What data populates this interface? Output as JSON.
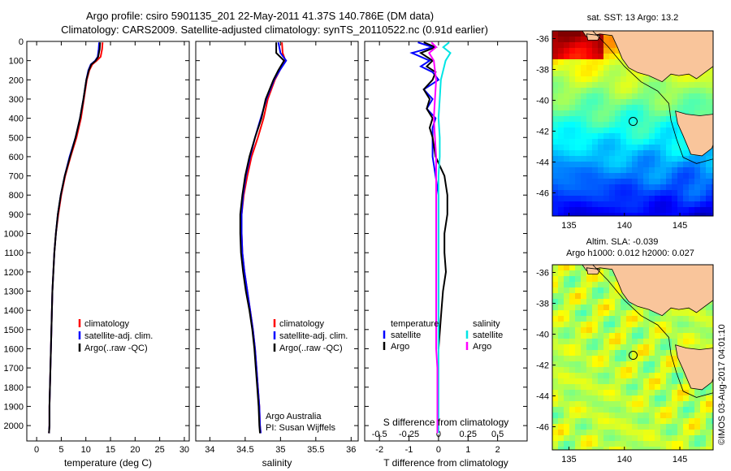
{
  "header": {
    "line1": "Argo profile: csiro 5901135_201 22-May-2011 41.37S 140.786E (DM data)",
    "line2": "Climatology: CARS2009. Satellite-adjusted climatology: synTS_20110522.nc (0.91d earlier)"
  },
  "colors": {
    "climatology": "#ff0000",
    "satellite": "#0000ff",
    "argo": "#000000",
    "argo_salinity": "#ff00ff",
    "satellite_salinity": "#00e5e5",
    "land": "#f9c59b"
  },
  "credit": "©IMOS 03-Aug-2017 04:01:10",
  "chart_data": [
    {
      "type": "line",
      "id": "temperature",
      "xlabel": "temperature (deg C)",
      "ylabel": "",
      "xlim": [
        -2,
        31
      ],
      "ylim": [
        2080,
        0
      ],
      "xticks": [
        0,
        5,
        10,
        15,
        20,
        25,
        30
      ],
      "yticks": [
        0,
        100,
        200,
        300,
        400,
        500,
        600,
        700,
        800,
        900,
        1000,
        1100,
        1200,
        1300,
        1400,
        1500,
        1600,
        1700,
        1800,
        1900,
        2000
      ],
      "legend": {
        "placement": "lower-middle",
        "entries": [
          "climatology",
          "satellite-adj. clim.",
          "Argo(..raw -QC)"
        ]
      },
      "series": [
        {
          "name": "climatology",
          "color_key": "climatology",
          "depth": [
            5,
            40,
            80,
            100,
            120,
            150,
            200,
            300,
            400,
            500,
            600,
            700,
            800,
            900,
            1000,
            1100,
            1200,
            1300,
            1400,
            1500,
            1600,
            1700,
            1800,
            1900,
            2000,
            2040
          ],
          "values": [
            13.4,
            13.3,
            13.0,
            12.2,
            11.3,
            10.7,
            10.2,
            9.6,
            9.0,
            8.1,
            6.9,
            5.8,
            5.0,
            4.4,
            3.9,
            3.6,
            3.4,
            3.2,
            3.1,
            3.0,
            2.9,
            2.8,
            2.7,
            2.6,
            2.6,
            2.5
          ]
        },
        {
          "name": "satellite-adj. clim.",
          "color_key": "satellite",
          "depth": [
            5,
            40,
            80,
            100,
            120,
            150,
            200,
            300,
            400,
            500,
            600,
            700,
            800,
            900,
            1000,
            1100,
            1200,
            1300,
            1400,
            1500,
            1600,
            1700,
            1800,
            1900,
            2000,
            2040
          ],
          "values": [
            12.7,
            12.6,
            12.4,
            11.9,
            11.0,
            10.5,
            10.1,
            9.5,
            8.8,
            7.9,
            6.7,
            5.7,
            4.9,
            4.3,
            3.9,
            3.6,
            3.4,
            3.2,
            3.1,
            3.0,
            2.9,
            2.8,
            2.7,
            2.6,
            2.6,
            2.5
          ]
        },
        {
          "name": "Argo(..raw -QC)",
          "color_key": "argo",
          "depth": [
            5,
            40,
            80,
            100,
            120,
            150,
            200,
            300,
            400,
            500,
            600,
            700,
            800,
            900,
            1000,
            1100,
            1200,
            1300,
            1400,
            1500,
            1600,
            1700,
            1800,
            1900,
            2000,
            2040
          ],
          "values": [
            12.9,
            12.8,
            12.5,
            12.0,
            11.1,
            10.6,
            10.1,
            9.5,
            8.8,
            7.9,
            6.8,
            5.7,
            4.9,
            4.3,
            3.9,
            3.6,
            3.4,
            3.2,
            3.1,
            3.0,
            2.9,
            2.8,
            2.7,
            2.6,
            2.6,
            2.5
          ]
        }
      ]
    },
    {
      "type": "line",
      "id": "salinity",
      "xlabel": "salinity",
      "ylabel": "",
      "xlim": [
        33.8,
        36.1
      ],
      "ylim": [
        2080,
        0
      ],
      "xticks": [
        34,
        34.5,
        35,
        35.5,
        36
      ],
      "legend": {
        "placement": "lower-middle",
        "entries": [
          "climatology",
          "satellite-adj. clim.",
          "Argo(..raw -QC)"
        ]
      },
      "annotation": [
        "Argo Australia",
        "PI: Susan Wijffels"
      ],
      "series": [
        {
          "name": "climatology",
          "color_key": "climatology",
          "depth": [
            5,
            60,
            100,
            150,
            200,
            300,
            400,
            500,
            600,
            700,
            800,
            900,
            1000,
            1100,
            1200,
            1300,
            1400,
            1500,
            1600,
            1700,
            1800,
            1900,
            2000,
            2040
          ],
          "values": [
            35.02,
            35.03,
            35.07,
            34.99,
            34.92,
            34.82,
            34.76,
            34.68,
            34.59,
            34.53,
            34.48,
            34.45,
            34.45,
            34.46,
            34.49,
            34.53,
            34.57,
            34.61,
            34.64,
            34.66,
            34.68,
            34.7,
            34.71,
            34.72
          ]
        },
        {
          "name": "satellite-adj. clim.",
          "color_key": "satellite",
          "depth": [
            5,
            60,
            100,
            150,
            200,
            300,
            400,
            500,
            600,
            700,
            800,
            900,
            1000,
            1100,
            1200,
            1300,
            1400,
            1500,
            1600,
            1700,
            1800,
            1900,
            2000,
            2040
          ],
          "values": [
            34.97,
            35.0,
            35.08,
            34.99,
            34.91,
            34.8,
            34.72,
            34.64,
            34.57,
            34.51,
            34.47,
            34.45,
            34.45,
            34.46,
            34.49,
            34.53,
            34.57,
            34.61,
            34.64,
            34.66,
            34.68,
            34.7,
            34.71,
            34.72
          ]
        },
        {
          "name": "Argo(..raw -QC)",
          "color_key": "argo",
          "depth": [
            5,
            60,
            100,
            150,
            200,
            300,
            400,
            500,
            600,
            700,
            800,
            900,
            1000,
            1100,
            1200,
            1300,
            1400,
            1500,
            1600,
            1700,
            1800,
            1900,
            2000,
            2040
          ],
          "values": [
            34.94,
            34.94,
            35.05,
            34.97,
            34.9,
            34.79,
            34.73,
            34.64,
            34.56,
            34.5,
            34.46,
            34.43,
            34.43,
            34.44,
            34.47,
            34.51,
            34.56,
            34.6,
            34.63,
            34.65,
            34.67,
            34.69,
            34.7,
            34.71
          ]
        }
      ]
    },
    {
      "type": "line",
      "id": "differences",
      "xlabel": "T difference from climatology",
      "xlabel_top": "S difference from climatology",
      "xlim": [
        -2.5,
        3
      ],
      "ylim": [
        2080,
        0
      ],
      "xticks": [
        -2,
        -1,
        0,
        1,
        2
      ],
      "sticks": [
        -0.5,
        -0.25,
        0,
        0.25,
        0.5
      ],
      "sticklabels": [
        "-0.5",
        "-0.25",
        "0",
        "0.25",
        "0.5"
      ],
      "legend": {
        "placement": "lower-middle",
        "headers": [
          "temperature",
          "salinity"
        ],
        "left": [
          "satellite",
          "Argo"
        ],
        "right": [
          "satellite",
          "Argo"
        ]
      },
      "series": [
        {
          "name": "temperature satellite",
          "color_key": "satellite",
          "units": "T",
          "depth": [
            5,
            30,
            60,
            100,
            130,
            160,
            200,
            250,
            300,
            350,
            400,
            450,
            500,
            600,
            700,
            800,
            900,
            1000,
            1100,
            1200,
            1300,
            1400,
            1500,
            1600
          ],
          "values": [
            -0.7,
            -0.2,
            -0.9,
            -0.3,
            -0.6,
            -0.2,
            0.0,
            -0.5,
            -0.2,
            -0.4,
            -0.1,
            -0.2,
            -0.2,
            -0.2,
            -0.1,
            0.0,
            0.0,
            0.0,
            0.0,
            0.0,
            0.0,
            0.0,
            0.0,
            0.0
          ]
        },
        {
          "name": "temperature Argo",
          "color_key": "argo",
          "units": "T",
          "depth": [
            5,
            30,
            60,
            100,
            130,
            160,
            200,
            250,
            300,
            350,
            400,
            450,
            500,
            600,
            700,
            800,
            900,
            1000,
            1100,
            1200,
            1300,
            1400,
            1500,
            1600
          ],
          "values": [
            -0.5,
            -0.1,
            -0.6,
            -0.2,
            -0.4,
            -0.1,
            -0.2,
            -0.5,
            -0.3,
            -0.4,
            -0.2,
            -0.3,
            -0.2,
            -0.1,
            0.2,
            0.3,
            0.3,
            0.2,
            0.2,
            0.25,
            0.15,
            0.1,
            0.05,
            0.0
          ]
        },
        {
          "name": "salinity satellite",
          "color_key": "satellite_salinity",
          "units": "S",
          "depth": [
            5,
            30,
            60,
            100,
            150,
            200,
            300,
            400,
            500,
            600,
            700,
            800,
            900,
            1000,
            1100,
            1200,
            1300,
            1400,
            1500,
            1600,
            1700,
            1800,
            1900,
            2000,
            2040
          ],
          "values": [
            0.09,
            0.04,
            0.1,
            0.06,
            0.04,
            0.02,
            0.01,
            0.0,
            0.01,
            0.01,
            0.0,
            0.0,
            0.0,
            0.0,
            0.0,
            0.0,
            0.0,
            0.0,
            0.0,
            0.0,
            0.0,
            0.0,
            0.0,
            0.0,
            0.0
          ]
        },
        {
          "name": "salinity Argo",
          "color_key": "argo_salinity",
          "units": "S",
          "depth": [
            5,
            30,
            60,
            100,
            150,
            200,
            300,
            400,
            500,
            600,
            700,
            800,
            900,
            1000,
            1100,
            1200,
            1300,
            1400,
            1500,
            1600,
            1700,
            1800,
            1900,
            2000,
            2040
          ],
          "values": [
            -0.06,
            -0.02,
            -0.08,
            -0.04,
            -0.03,
            -0.02,
            -0.03,
            -0.04,
            -0.03,
            -0.02,
            -0.02,
            -0.02,
            -0.02,
            -0.02,
            -0.02,
            -0.02,
            -0.02,
            -0.02,
            -0.02,
            -0.02,
            -0.01,
            -0.01,
            -0.01,
            -0.01,
            -0.01
          ]
        }
      ]
    },
    {
      "type": "heatmap",
      "id": "sst-map",
      "title": "sat. SST: 13 Argo: 13.2",
      "xlim": [
        133.5,
        148
      ],
      "ylim": [
        -47.5,
        -35.5
      ],
      "xticks": [
        135,
        140,
        145
      ],
      "yticks": [
        -36,
        -38,
        -40,
        -42,
        -44,
        -46
      ],
      "profile_location": [
        140.786,
        -41.37
      ]
    },
    {
      "type": "heatmap",
      "id": "sla-map",
      "title_lines": [
        "Altim. SLA: -0.039",
        "Argo h1000: 0.012 h2000: 0.027"
      ],
      "xlim": [
        133.5,
        148
      ],
      "ylim": [
        -47.5,
        -35.5
      ],
      "xticks": [
        135,
        140,
        145
      ],
      "yticks": [
        -36,
        -38,
        -40,
        -42,
        -44,
        -46
      ],
      "profile_location": [
        140.786,
        -41.37
      ]
    }
  ]
}
